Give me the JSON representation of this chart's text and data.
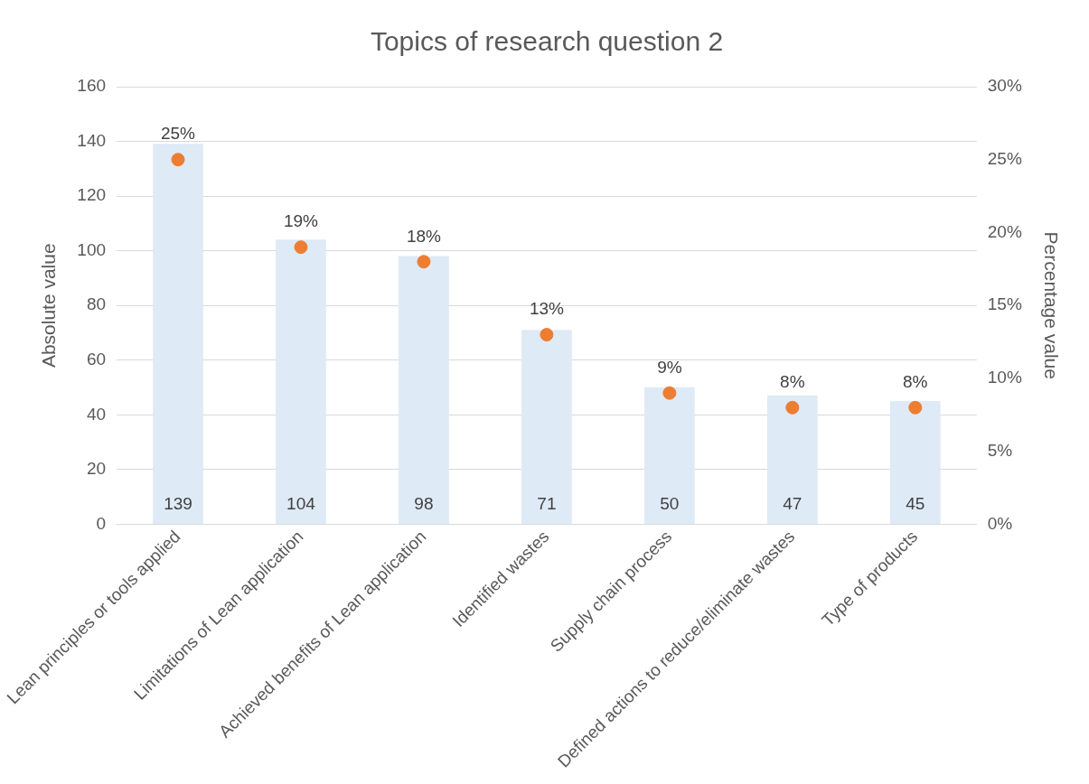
{
  "chart_data": {
    "type": "bar",
    "title": "Topics of research question 2",
    "ylabel": "Absolute value",
    "y2label": "Percentage value",
    "categories": [
      "Lean principles or tools applied",
      "Limitations of Lean application",
      "Achieved benefits of Lean application",
      "Identified wastes",
      "Supply chain process",
      "Defined actions to reduce/eliminate wastes",
      "Type of products"
    ],
    "series": [
      {
        "color": "#deeaf6",
        "values": [
          139,
          104,
          98,
          71,
          50,
          47,
          45
        ],
        "value_labels": [
          "139",
          "104",
          "98",
          "71",
          "50",
          "47",
          "45"
        ]
      },
      {
        "type": "scatter",
        "axis": "y2",
        "color": "#ed7d31",
        "x": [
          "Lean principles or tools applied",
          "Limitations of Lean application",
          "Achieved benefits of Lean application",
          "Identified wastes",
          "Supply chain process",
          "Defined actions to reduce/eliminate wastes",
          "Type of products"
        ],
        "values": [
          25,
          19,
          18,
          13,
          9,
          8,
          8
        ],
        "value_labels": [
          "25%",
          "19%",
          "18%",
          "13%",
          "9%",
          "8%",
          "8%"
        ]
      }
    ],
    "ylim": [
      0,
      160
    ],
    "yticks": [
      0,
      20,
      40,
      60,
      80,
      100,
      120,
      140,
      160
    ],
    "y2lim": [
      0,
      30
    ],
    "y2ticks": [
      {
        "value": 0,
        "label": "0%"
      },
      {
        "value": 5,
        "label": "5%"
      },
      {
        "value": 10,
        "label": "10%"
      },
      {
        "value": 15,
        "label": "15%"
      },
      {
        "value": 20,
        "label": "20%"
      },
      {
        "value": 25,
        "label": "25%"
      },
      {
        "value": 30,
        "label": "30%"
      }
    ],
    "grid": "y",
    "legend": false,
    "marker": "circle"
  }
}
